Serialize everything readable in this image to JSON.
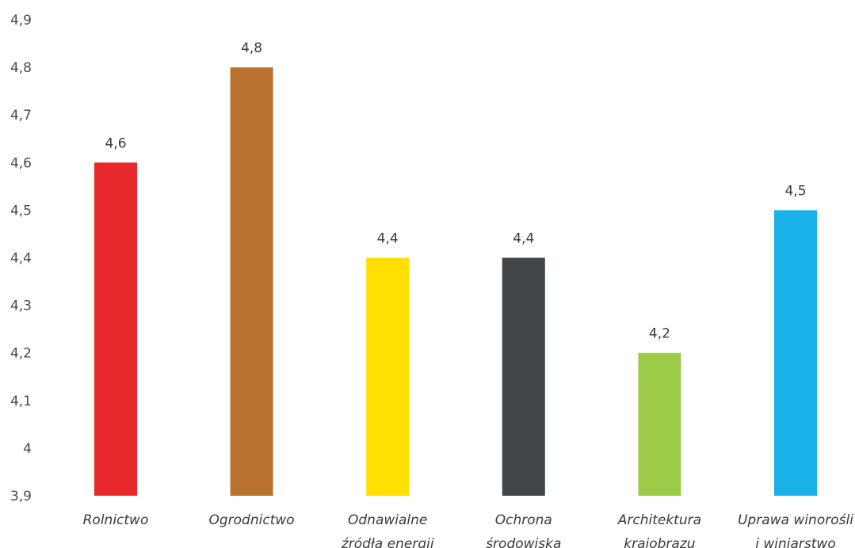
{
  "chart_data": {
    "type": "bar",
    "categories": [
      [
        "Rolnictwo"
      ],
      [
        "Ogrodnictwo"
      ],
      [
        "Odnawialne",
        "źródła energii"
      ],
      [
        "Ochrona",
        "środowiska"
      ],
      [
        "Architektura",
        "krajobrazu"
      ],
      [
        "Uprawa winorośli",
        "i winiarstwo"
      ]
    ],
    "values": [
      4.6,
      4.8,
      4.4,
      4.4,
      4.2,
      4.5
    ],
    "value_labels": [
      "4,6",
      "4,8",
      "4,4",
      "4,4",
      "4,2",
      "4,5"
    ],
    "colors": [
      "#e8292b",
      "#b8732e",
      "#ffe000",
      "#3f4548",
      "#9ccc47",
      "#1ab0e8"
    ],
    "ylim": [
      3.9,
      4.9
    ],
    "y_ticks": [
      3.9,
      4.0,
      4.1,
      4.2,
      4.3,
      4.4,
      4.5,
      4.6,
      4.7,
      4.8,
      4.9
    ],
    "y_tick_labels": [
      "3,9",
      "4",
      "4,1",
      "4,2",
      "4,3",
      "4,4",
      "4,5",
      "4,6",
      "4,7",
      "4,8",
      "4,9"
    ],
    "grid": false,
    "legend": "none",
    "title": "",
    "xlabel": "",
    "ylabel": ""
  }
}
